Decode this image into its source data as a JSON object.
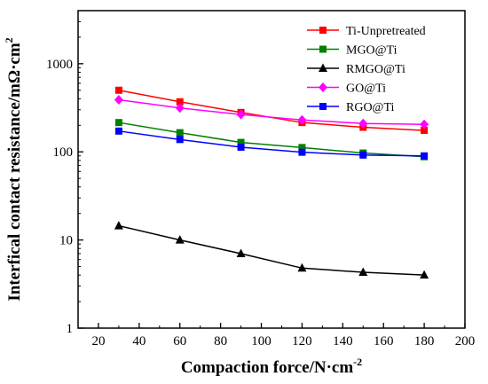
{
  "chart_data": {
    "type": "line",
    "title": "",
    "xlabel": "Compaction force/N·cm",
    "xlabel_sup": "-2",
    "ylabel": "Interfical contact resistance/mΩ·cm",
    "ylabel_sup": "2",
    "xlim": [
      10,
      200
    ],
    "ylim": [
      1,
      4000
    ],
    "y_scale": "log",
    "x_ticks": [
      20,
      40,
      60,
      80,
      100,
      120,
      140,
      160,
      180,
      200
    ],
    "y_ticks": [
      1,
      10,
      100,
      1000
    ],
    "grid": false,
    "legend_position": "top-right",
    "x": [
      30,
      60,
      90,
      120,
      150,
      180
    ],
    "series": [
      {
        "name": "Ti-Unpretreated",
        "color": "#ff0000",
        "marker": "square",
        "values": [
          500,
          370,
          280,
          215,
          190,
          175
        ]
      },
      {
        "name": "MGO@Ti",
        "color": "#008000",
        "marker": "square",
        "values": [
          215,
          165,
          128,
          112,
          97,
          88
        ]
      },
      {
        "name": "RMGO@Ti",
        "color": "#000000",
        "marker": "triangle",
        "values": [
          14.5,
          10,
          7,
          4.8,
          4.3,
          4.0
        ]
      },
      {
        "name": "GO@Ti",
        "color": "#ff00ff",
        "marker": "diamond",
        "values": [
          390,
          315,
          265,
          230,
          210,
          205
        ]
      },
      {
        "name": "RGO@Ti",
        "color": "#0000ff",
        "marker": "square",
        "values": [
          172,
          138,
          113,
          99,
          92,
          90
        ]
      }
    ]
  }
}
